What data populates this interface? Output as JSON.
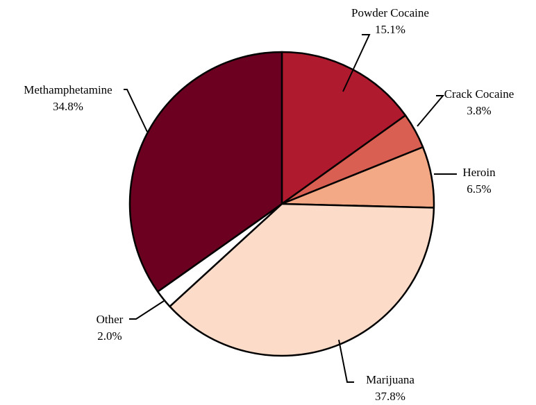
{
  "chart_data": {
    "type": "pie",
    "title": "",
    "slices": [
      {
        "label": "Powder Cocaine",
        "percent_label": "15.1%",
        "value": 15.1,
        "color": "#b01a2e"
      },
      {
        "label": "Crack Cocaine",
        "percent_label": "3.8%",
        "value": 3.8,
        "color": "#d95f52"
      },
      {
        "label": "Heroin",
        "percent_label": "6.5%",
        "value": 6.5,
        "color": "#f3a886"
      },
      {
        "label": "Marijuana",
        "percent_label": "37.8%",
        "value": 37.8,
        "color": "#fcdcc8"
      },
      {
        "label": "Other",
        "percent_label": "2.0%",
        "value": 2.0,
        "color": "#ffffff"
      },
      {
        "label": "Methamphetamine",
        "percent_label": "34.8%",
        "value": 34.8,
        "color": "#6b0020"
      }
    ],
    "start_angle": "12 o'clock, clockwise",
    "legend": "none (callout labels)"
  }
}
